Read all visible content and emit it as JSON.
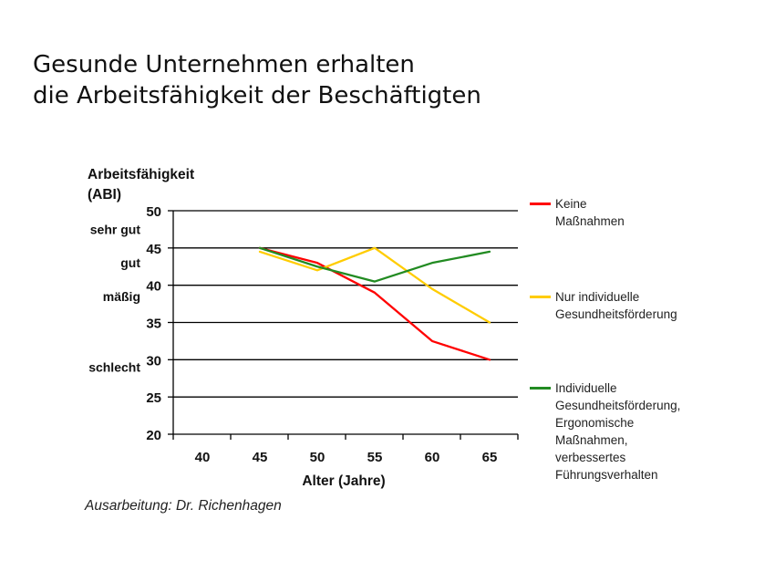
{
  "slide": {
    "title_line1": "Gesunde Unternehmen erhalten",
    "title_line2": "die Arbeitsfähigkeit der Beschäftigten",
    "credit": "Ausarbeitung: Dr. Richenhagen"
  },
  "chart_data": {
    "type": "line",
    "ylabel_line1": "Arbeitsfähigkeit",
    "ylabel_line2": "(ABI)",
    "xlabel": "Alter (Jahre)",
    "categories": [
      "40",
      "45",
      "50",
      "55",
      "60",
      "65"
    ],
    "ylim": [
      20,
      50
    ],
    "yticks": [
      50,
      45,
      40,
      35,
      30,
      25,
      20
    ],
    "category_labels": [
      {
        "text": "sehr gut",
        "y": 47.5
      },
      {
        "text": "gut",
        "y": 43.0
      },
      {
        "text": "mäßig",
        "y": 38.5
      },
      {
        "text": "schlecht",
        "y": 29.0
      }
    ],
    "grid": "horizontal",
    "legend_position": "right",
    "series": [
      {
        "name": "Keine Maßnahmen",
        "color": "#ff0000",
        "values": [
          null,
          45,
          43,
          39,
          32.5,
          30
        ]
      },
      {
        "name": "Nur individuelle\nGesundheitsförderung",
        "color": "#ffcc00",
        "values": [
          null,
          44.5,
          42,
          45,
          39.5,
          35
        ]
      },
      {
        "name": "Individuelle\nGesundheitsförderung,\nErgonomische\nMaßnahmen, verbessertes\nFührungsverhalten",
        "color": "#228b22",
        "values": [
          null,
          45,
          42.5,
          40.5,
          43,
          44.5
        ]
      }
    ]
  }
}
